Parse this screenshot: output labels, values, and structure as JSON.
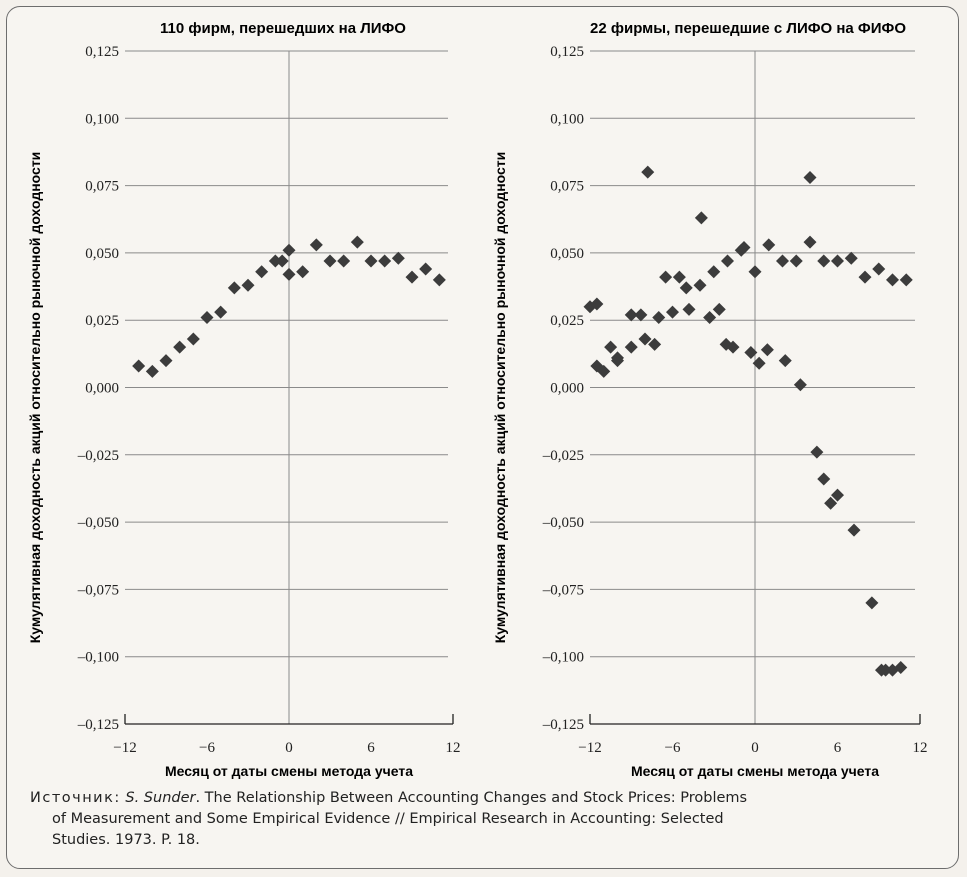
{
  "chart_data": [
    {
      "type": "scatter",
      "title": "110 фирм, перешедших на ЛИФО",
      "xlabel": "Месяц от даты смены метода учета",
      "ylabel": "Кумулятивная доходность акций относительно рыночной доходности",
      "xlim": [
        -12,
        12
      ],
      "ylim": [
        -0.125,
        0.125
      ],
      "xticks": [
        "-12",
        "-6",
        "0",
        "6",
        "12"
      ],
      "yticks": [
        "0,125",
        "0,100",
        "0,075",
        "0,050",
        "0,025",
        "0,000",
        "–0,025",
        "–0,050",
        "–0,075",
        "–0,100",
        "–0,125"
      ],
      "x": [
        -11,
        -10,
        -9,
        -8,
        -7,
        -6,
        -5,
        -4,
        -3,
        -2,
        -1,
        0,
        1,
        2,
        3,
        4,
        5,
        6,
        7,
        8,
        9,
        10,
        11
      ],
      "y": [
        0.008,
        0.006,
        0.01,
        0.015,
        0.018,
        0.026,
        0.028,
        0.037,
        0.038,
        0.043,
        0.047,
        0.051,
        0.043,
        0.053,
        0.047,
        0.047,
        0.054,
        0.047,
        0.047,
        0.048,
        0.041,
        0.044,
        0.04
      ],
      "x_extra": [
        -0.5,
        0
      ],
      "y_extra": [
        0.047,
        0.042
      ],
      "grid": "horizontal",
      "vline_at": 0
    },
    {
      "type": "scatter",
      "title": "22 фирмы, перешедшие с ЛИФО на ФИФО",
      "xlabel": "Месяц от даты смены метода учета",
      "ylabel": "Кумулятивная доходность акций относительно рыночной доходности",
      "xlim": [
        -12,
        12
      ],
      "ylim": [
        -0.125,
        0.125
      ],
      "xticks": [
        "-12",
        "-6",
        "0",
        "6",
        "12"
      ],
      "yticks": [
        "0,125",
        "0,100",
        "0,075",
        "0,050",
        "0,025",
        "0,000",
        "–0,025",
        "–0,050",
        "–0,075",
        "–0,100",
        "–0,125"
      ],
      "series": [
        {
          "x": [
            -11.5,
            -11,
            -10,
            -9,
            -8,
            -7,
            -6,
            -5,
            -4,
            -3,
            -2,
            -1,
            0,
            1,
            2,
            3,
            4,
            5,
            6,
            7,
            8,
            9,
            10,
            11
          ],
          "y": [
            0.008,
            0.006,
            0.01,
            0.015,
            0.018,
            0.026,
            0.028,
            0.037,
            0.038,
            0.043,
            0.047,
            0.051,
            0.043,
            0.053,
            0.047,
            0.047,
            0.054,
            0.047,
            0.047,
            0.048,
            0.041,
            0.044,
            0.04,
            0.04
          ]
        },
        {
          "x": [
            -12,
            -11.5,
            -10.5,
            -10,
            -9,
            -8.3,
            -7.8,
            -7.3,
            -6.5,
            -5.5,
            -4.8,
            -3.9,
            -3.3,
            -2.6,
            -2.1,
            -1.6,
            -0.8,
            -0.3,
            0.3,
            0.9,
            2.2,
            3.3,
            4.0,
            4.5,
            5.0,
            5.5,
            6.0,
            7.2,
            8.5,
            9.2,
            9.5,
            10.0,
            10.6
          ],
          "y": [
            0.03,
            0.031,
            0.015,
            0.011,
            0.027,
            0.027,
            0.08,
            0.016,
            0.041,
            0.041,
            0.029,
            0.063,
            0.026,
            0.029,
            0.016,
            0.015,
            0.052,
            0.013,
            0.009,
            0.014,
            0.01,
            0.001,
            0.078,
            -0.024,
            -0.034,
            -0.043,
            -0.04,
            -0.053,
            -0.08,
            -0.105,
            -0.105,
            -0.105,
            -0.104
          ]
        }
      ],
      "grid": "horizontal",
      "vline_at": 0
    }
  ],
  "source": {
    "label": "Источник:",
    "author": "S. Sunder",
    "text_line1": ". The Relationship Between Accounting Changes and Stock Prices: Problems",
    "text_line2": "of Measurement and Some Empirical Evidence // Empirical Research in Accounting: Selected",
    "text_line3": "Studies. 1973. P. 18."
  }
}
